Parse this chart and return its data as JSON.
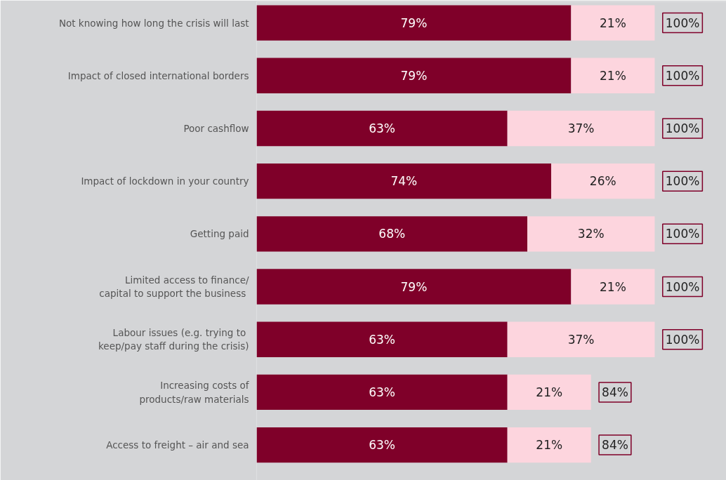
{
  "chart_data": {
    "type": "bar",
    "orientation": "horizontal",
    "stacked": true,
    "tick_labels": "y",
    "grid": false,
    "xlim": [
      0,
      118
    ],
    "categories": [
      "Not knowing how long the crisis will last",
      "Impact of closed international borders",
      "Poor cashflow",
      "Impact of lockdown in your country",
      "Getting paid",
      "Limited access to finance/\ncapital  to support the business",
      "Labour issues  (e.g. trying to\nkeep/pay staff during the crisis)",
      "Increasing costs of\nproducts/raw materials",
      "Access to freight – air and sea"
    ],
    "series": [
      {
        "color": "#7f0029",
        "values": [
          79,
          79,
          63,
          74,
          68,
          79,
          63,
          63,
          63
        ],
        "value_labels": [
          "79%",
          "79%",
          "63%",
          "74%",
          "68%",
          "79%",
          "63%",
          "63%",
          "63%"
        ]
      },
      {
        "color": "#fdd5de",
        "values": [
          21,
          21,
          37,
          26,
          32,
          21,
          37,
          21,
          21
        ],
        "value_labels": [
          "21%",
          "21%",
          "37%",
          "26%",
          "32%",
          "21%",
          "37%",
          "21%",
          "21%"
        ]
      }
    ],
    "totals": [
      "100%",
      "100%",
      "100%",
      "100%",
      "100%",
      "100%",
      "100%",
      "84%",
      "84%"
    ]
  }
}
